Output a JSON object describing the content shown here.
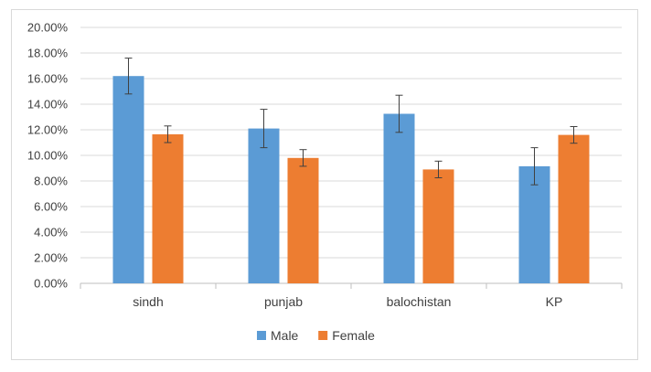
{
  "chart_data": {
    "type": "bar",
    "title": "",
    "xlabel": "",
    "ylabel": "",
    "categories": [
      "sindh",
      "punjab",
      "balochistan",
      "KP"
    ],
    "series": [
      {
        "name": "Male",
        "color": "#5B9BD5",
        "values": [
          16.2,
          12.1,
          13.25,
          9.15
        ],
        "error": [
          1.4,
          1.5,
          1.45,
          1.45
        ]
      },
      {
        "name": "Female",
        "color": "#ED7D31",
        "values": [
          11.65,
          9.8,
          8.9,
          11.6
        ],
        "error": [
          0.65,
          0.65,
          0.65,
          0.65
        ]
      }
    ],
    "ylim": [
      0,
      20
    ],
    "yticks": [
      "0.00%",
      "2.00%",
      "4.00%",
      "6.00%",
      "8.00%",
      "10.00%",
      "12.00%",
      "14.00%",
      "16.00%",
      "18.00%",
      "20.00%"
    ],
    "grid": true,
    "legend_position": "bottom"
  }
}
